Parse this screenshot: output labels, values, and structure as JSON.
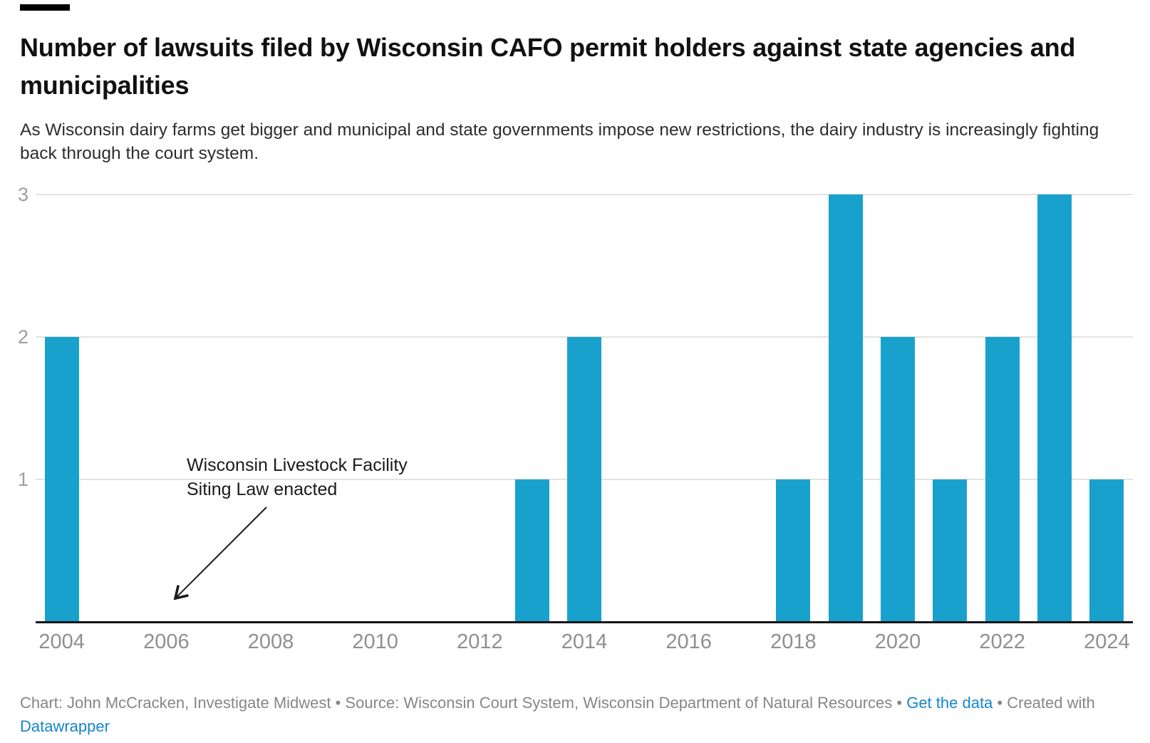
{
  "header": {
    "title": "Number of lawsuits filed by Wisconsin CAFO permit holders against state agencies and municipalities",
    "subtitle": "As Wisconsin dairy farms get bigger and municipal and state governments impose new restrictions, the dairy industry is increasingly fighting back through the court system."
  },
  "footer": {
    "credit": "Chart: John McCracken, Investigate Midwest • Source: Wisconsin Court System, Wisconsin Department of Natural Resources • ",
    "get_data_label": "Get the data",
    "created_with": " • Created with ",
    "datawrapper_label": "Datawrapper",
    "link_color": "#1586cf",
    "text_color": "#868686"
  },
  "chart_data": {
    "type": "bar",
    "title": "Number of lawsuits filed by Wisconsin CAFO permit holders against state agencies and municipalities",
    "xlabel": "",
    "ylabel": "",
    "x": [
      2004,
      2005,
      2006,
      2007,
      2008,
      2009,
      2010,
      2011,
      2012,
      2013,
      2014,
      2015,
      2016,
      2017,
      2018,
      2019,
      2020,
      2021,
      2022,
      2023,
      2024
    ],
    "values": [
      2,
      0,
      0,
      0,
      0,
      0,
      0,
      0,
      0,
      1,
      2,
      0,
      0,
      0,
      1,
      3,
      2,
      1,
      2,
      3,
      1
    ],
    "xticks": [
      2004,
      2006,
      2008,
      2010,
      2012,
      2014,
      2016,
      2018,
      2020,
      2022,
      2024
    ],
    "yticks": [
      1,
      2,
      3
    ],
    "ylim": [
      0,
      3
    ],
    "grid": "horizontal",
    "legend": "none",
    "bar_color": "#18a1cd",
    "gridline_color": "#e3e3e3",
    "axis_line_color": "#151515",
    "tick_label_color": "#8f8f8f",
    "annotation": {
      "text": "Wisconsin Livestock Facility Siting Law enacted",
      "lines": [
        "Wisconsin Livestock Facility",
        "Siting Law enacted"
      ],
      "arrow_points_to_year": 2006
    }
  }
}
